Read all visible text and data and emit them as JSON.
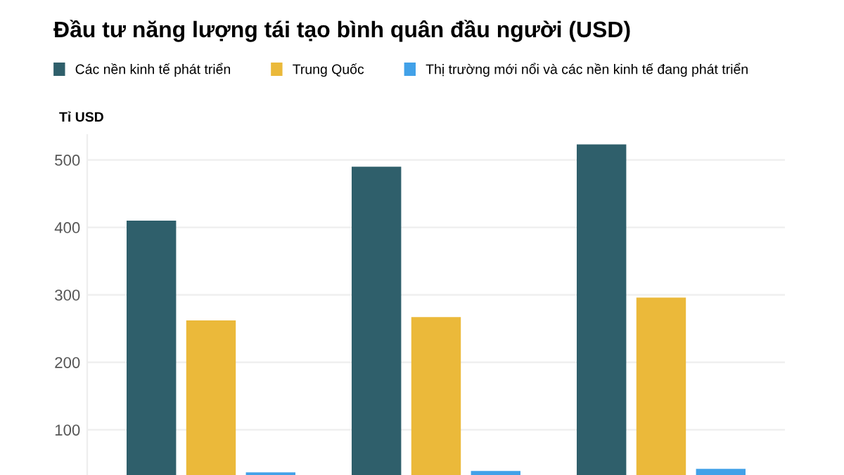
{
  "chart_data": {
    "type": "bar",
    "title": "Đầu tư năng lượng tái tạo bình quân đầu người (USD)",
    "ylabel": "Tỉ USD",
    "categories": [
      null,
      null,
      null
    ],
    "series": [
      {
        "name": "Các nền kinh tế phát triển",
        "color": "#2f5f6b",
        "values": [
          410,
          490,
          523
        ]
      },
      {
        "name": "Trung Quốc",
        "color": "#ebb93a",
        "values": [
          262,
          267,
          296
        ]
      },
      {
        "name": "Thị trường mới nổi và các nền kinh tế đang phát triển",
        "color": "#42a1e8",
        "values": [
          37,
          39,
          42
        ]
      }
    ],
    "ylim": [
      33,
      537
    ],
    "yticks": [
      100,
      200,
      300,
      400,
      500
    ],
    "grid": "y",
    "legend": "top left",
    "tick_labels": "y"
  }
}
